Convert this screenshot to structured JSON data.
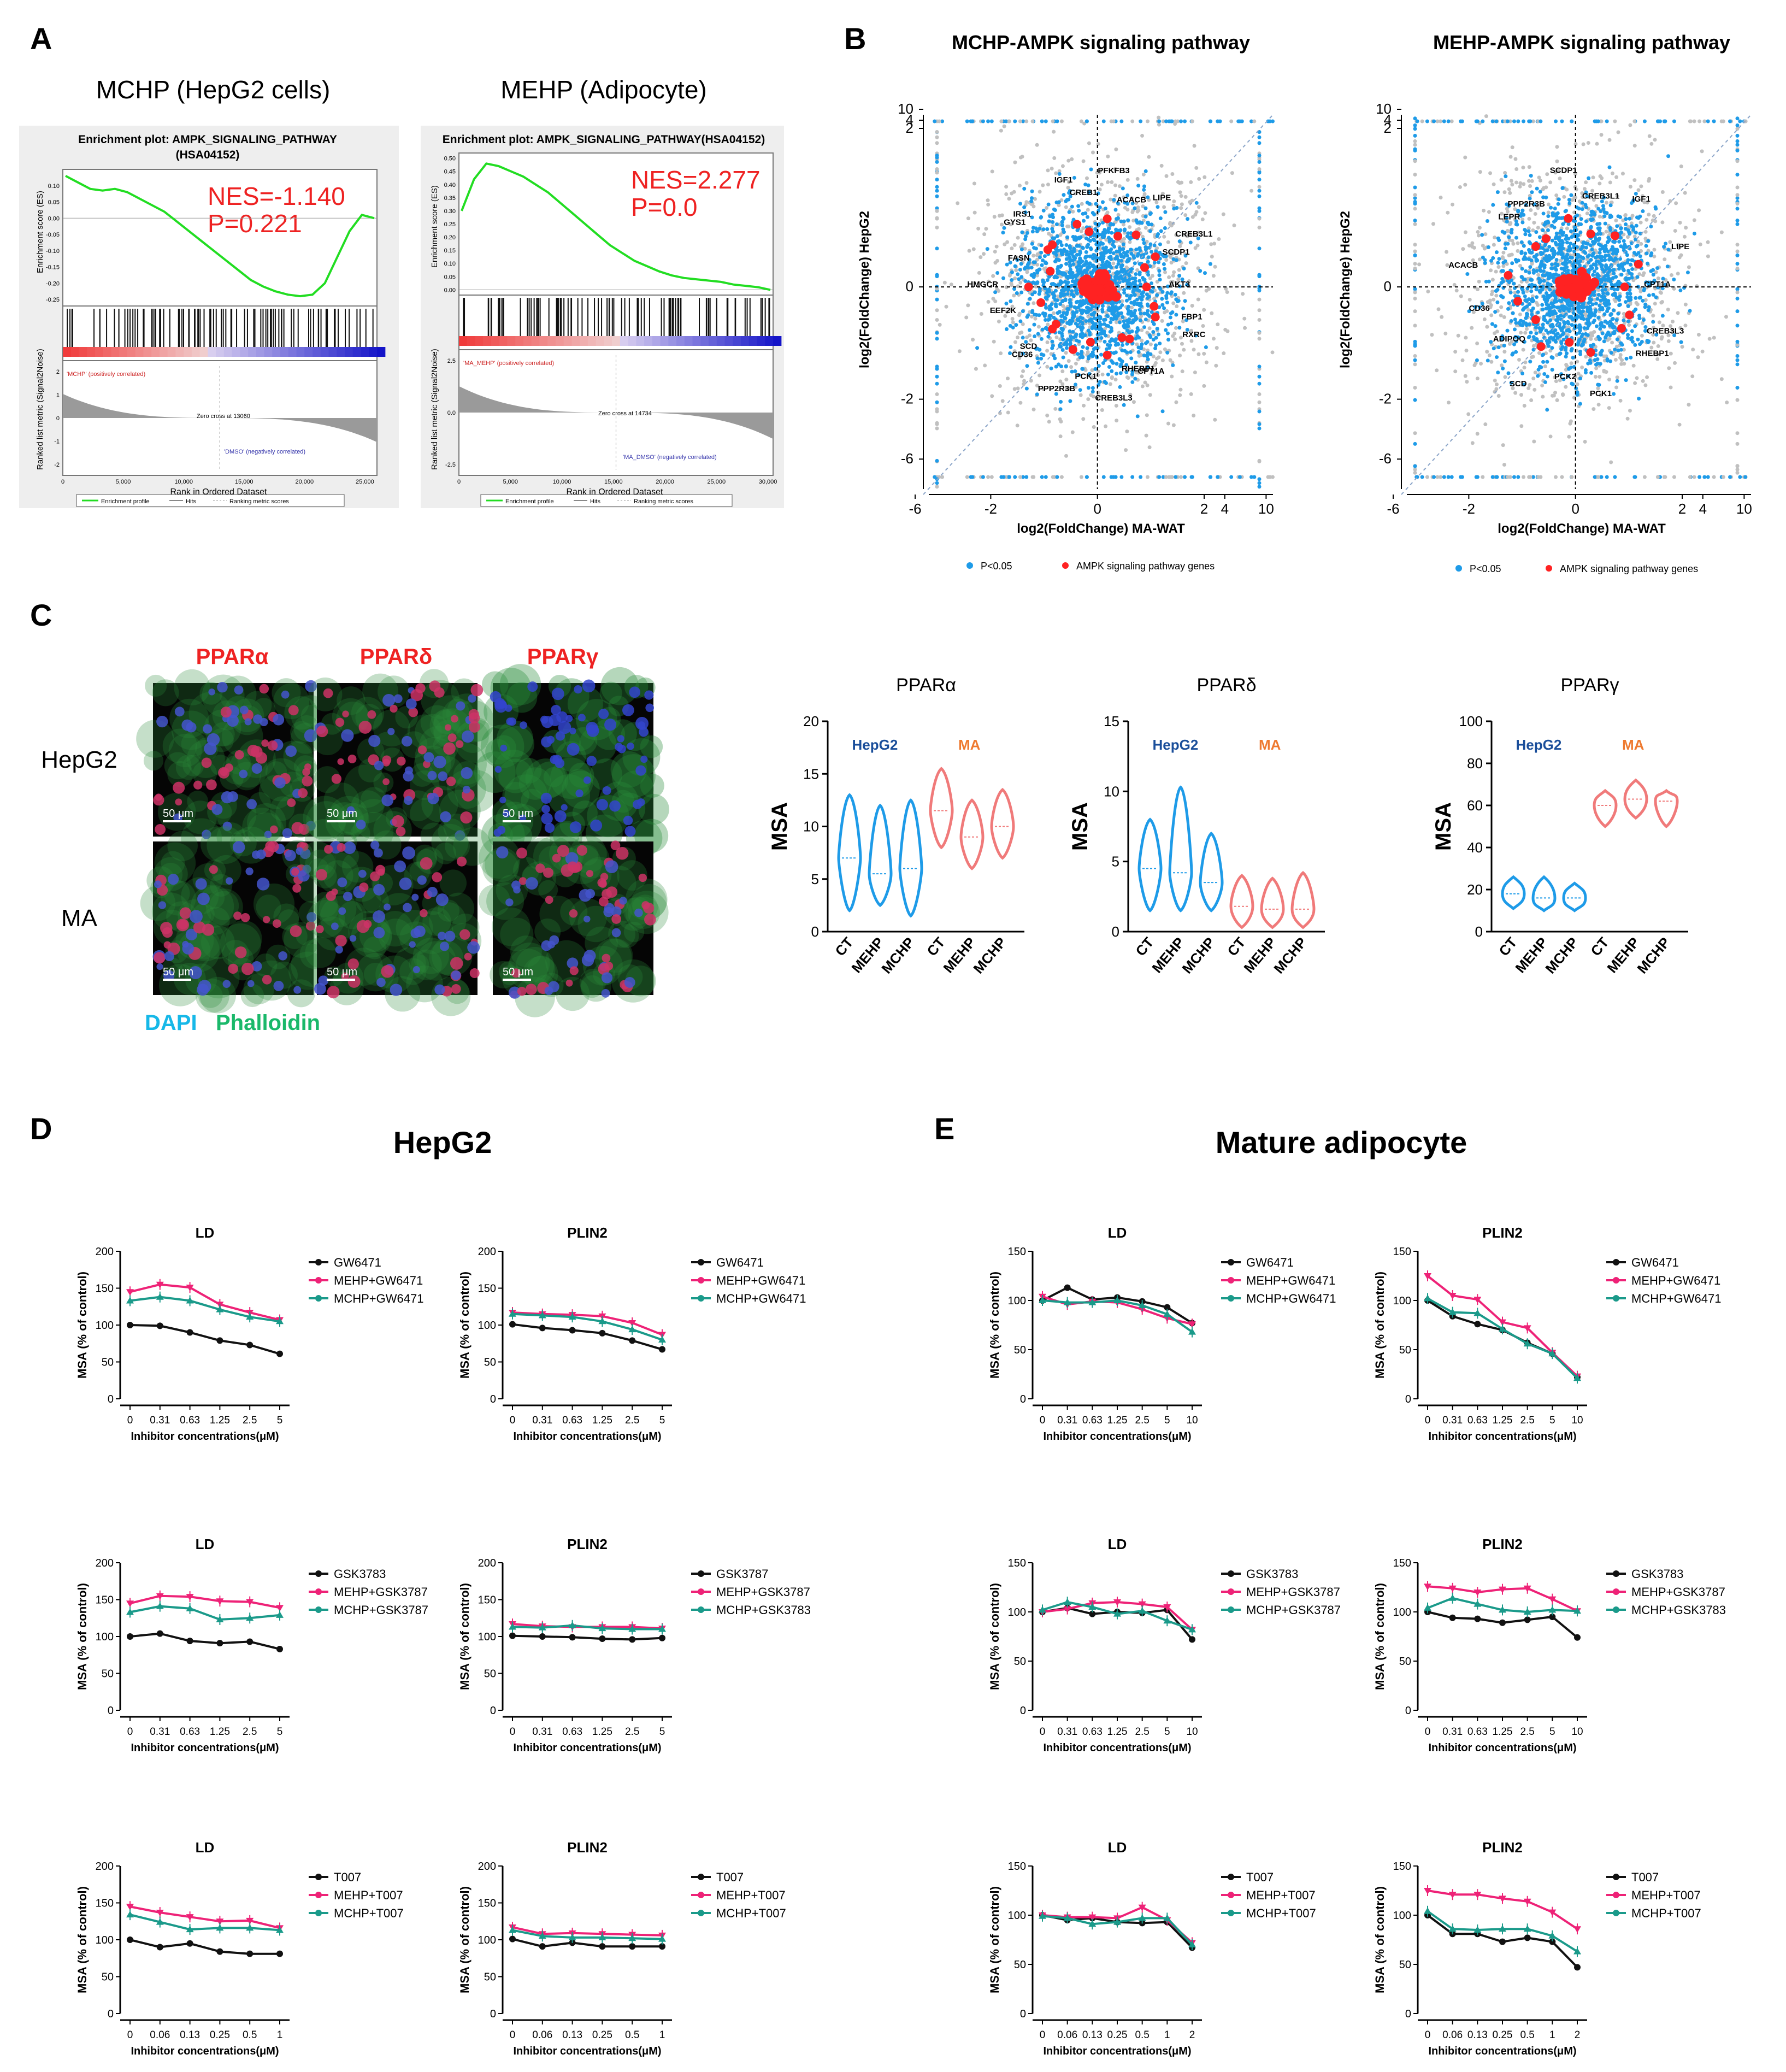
{
  "colors": {
    "green_line": "#22dd22",
    "red": "#ff2222",
    "blue_pts": "#1e9be8",
    "grey_pts": "#c0c0c0",
    "magenta": "#ee2277",
    "teal": "#1a9a8a",
    "black": "#111111",
    "hepg2_blue": "#1a4e9a",
    "ma_orange": "#ee7a30",
    "violin_blue": "#1e9be8",
    "violin_pink": "#f07a7a",
    "dapi": "#16b8e8",
    "phalloidin": "#1ab86a"
  },
  "panelA": {
    "letter": "A",
    "plots": [
      {
        "heading": "MCHP (HepG2 cells)",
        "title1": "Enrichment plot: AMPK_SIGNALING_PATHWAY",
        "title2": "(HSA04152)",
        "nes": "NES=-1.140",
        "p": "P=0.221",
        "es_label": "Enrichment score (ES)",
        "metric_label": "Ranked list metric (Signal2Noise)",
        "xlabel": "Rank in Ordered Dataset",
        "bar_left": "'MCHP' (positively correlated)",
        "bar_right": "'DMSO' (negatively correlated)",
        "zero_cross": "Zero cross at 13060",
        "xticks": [
          "0",
          "5,000",
          "10,000",
          "15,000",
          "20,000",
          "25,000"
        ],
        "esticks": [
          "0.10",
          "0.05",
          "0.00",
          "-0.05",
          "-0.10",
          "-0.15",
          "-0.20",
          "-0.25"
        ],
        "mticks": [
          "2",
          "1",
          "0",
          "-1",
          "-2"
        ],
        "legend": [
          "Enrichment profile",
          "Hits",
          "Ranking metric scores"
        ],
        "es_curve": [
          0.13,
          0.11,
          0.09,
          0.085,
          0.09,
          0.08,
          0.06,
          0.04,
          0.02,
          -0.01,
          -0.04,
          -0.07,
          -0.1,
          -0.13,
          -0.16,
          -0.19,
          -0.21,
          -0.225,
          -0.235,
          -0.24,
          -0.235,
          -0.2,
          -0.12,
          -0.04,
          0.01,
          0.0
        ]
      },
      {
        "heading": "MEHP (Adipocyte)",
        "title1": "Enrichment plot: AMPK_SIGNALING_PATHWAY(HSA04152)",
        "title2": "",
        "nes": "NES=2.277",
        "p": "P=0.0",
        "es_label": "Enrichment score (ES)",
        "metric_label": "Ranked list metric (Signal2Noise)",
        "xlabel": "Rank in Ordered Dataset",
        "bar_left": "'MA_MEHP' (positively correlated)",
        "bar_right": "'MA_DMSO' (negatively correlated)",
        "zero_cross": "Zero cross at 14734",
        "xticks": [
          "0",
          "5,000",
          "10,000",
          "15,000",
          "20,000",
          "25,000",
          "30,000"
        ],
        "esticks": [
          "0.50",
          "0.45",
          "0.40",
          "0.35",
          "0.30",
          "0.25",
          "0.20",
          "0.15",
          "0.10",
          "0.05",
          "0.00"
        ],
        "mticks": [
          "2.5",
          "0.0",
          "-2.5"
        ],
        "legend": [
          "Enrichment profile",
          "Hits",
          "Ranking metric scores"
        ],
        "es_curve": [
          0.3,
          0.42,
          0.48,
          0.47,
          0.45,
          0.43,
          0.4,
          0.37,
          0.33,
          0.29,
          0.25,
          0.21,
          0.17,
          0.14,
          0.11,
          0.09,
          0.07,
          0.055,
          0.045,
          0.04,
          0.035,
          0.03,
          0.02,
          0.015,
          0.01,
          0.0
        ]
      }
    ]
  },
  "panelB": {
    "letter": "B",
    "plots": [
      {
        "title": "MCHP-AMPK signaling pathway",
        "xlabel": "log2(FoldChange) MA-WAT",
        "ylabel": "log2(FoldChange) HepG2",
        "yticks": [
          "10",
          "4",
          "2",
          "0",
          "-2",
          "-6"
        ],
        "xticks": [
          "-6",
          "-2",
          "0",
          "2",
          "4",
          "10"
        ],
        "genes": [
          "AKT3",
          "FBP1",
          "RXRC",
          "CPT1A",
          "RHEBP1",
          "CREB3L3",
          "PCK1",
          "PPP2R3B",
          "CD36",
          "SCD",
          "EEF2K",
          "HMGCR",
          "FASN",
          "GYS1",
          "IRS1",
          "IGF1",
          "CREB1",
          "PFKFB3",
          "ACACB",
          "LIPE",
          "CREB3L1",
          "SCDP1"
        ]
      },
      {
        "title": "MEHP-AMPK signaling pathway",
        "xlabel": "log2(FoldChange) MA-WAT",
        "ylabel": "log2(FoldChange) HepG2",
        "yticks": [
          "10",
          "4",
          "2",
          "0",
          "-2",
          "-6"
        ],
        "xticks": [
          "-6",
          "-2",
          "0",
          "2",
          "4",
          "10"
        ],
        "genes": [
          "CPT1A",
          "CREB3L3",
          "RHEBP1",
          "PCK1",
          "PCK2",
          "SCD",
          "ADIPOQ",
          "CD36",
          "ACACB",
          "LEPR",
          "PPP2R3B",
          "SCDP1",
          "CREB3L1",
          "IGF1",
          "LIPE"
        ]
      }
    ],
    "legend": {
      "blue": "P<0.05",
      "red": "AMPK signaling pathway genes"
    }
  },
  "panelC": {
    "letter": "C",
    "columns": [
      "PPARα",
      "PPARδ",
      "PPARγ"
    ],
    "rows": [
      "HepG2",
      "MA"
    ],
    "scalebar": "50 μm",
    "stain_dapi": "DAPI",
    "stain_phalloidin": "Phalloidin",
    "violins": [
      {
        "title": "PPARα",
        "ylabel": "MSA",
        "yticks": [
          "0",
          "5",
          "10",
          "15",
          "20"
        ],
        "ymax": 20,
        "groups": [
          "CT",
          "MEHP",
          "MCHP",
          "CT",
          "MEHP",
          "MCHP"
        ],
        "hepg2": "HepG2",
        "ma": "MA",
        "centers": [
          7,
          5.5,
          6,
          11.5,
          9,
          10
        ],
        "ranges": [
          [
            2,
            13
          ],
          [
            2.5,
            12
          ],
          [
            1.5,
            12.5
          ],
          [
            8,
            15.5
          ],
          [
            6,
            12.5
          ],
          [
            7,
            13.5
          ]
        ]
      },
      {
        "title": "PPARδ",
        "ylabel": "MSA",
        "yticks": [
          "0",
          "5",
          "10",
          "15"
        ],
        "ymax": 15,
        "groups": [
          "CT",
          "MEHP",
          "MCHP",
          "CT",
          "MEHP",
          "MCHP"
        ],
        "hepg2": "HepG2",
        "ma": "MA",
        "centers": [
          4.5,
          4.2,
          3.5,
          1.8,
          1.6,
          1.6
        ],
        "ranges": [
          [
            1.5,
            8
          ],
          [
            1.5,
            10.3
          ],
          [
            1.5,
            7
          ],
          [
            0.3,
            4
          ],
          [
            0.3,
            3.8
          ],
          [
            0.3,
            4.2
          ]
        ]
      },
      {
        "title": "PPARγ",
        "ylabel": "MSA",
        "yticks": [
          "0",
          "20",
          "40",
          "60",
          "80",
          "100"
        ],
        "ymax": 100,
        "groups": [
          "CT",
          "MEHP",
          "MCHP",
          "CT",
          "MEHP",
          "MCHP"
        ],
        "hepg2": "HepG2",
        "ma": "MA",
        "centers": [
          18,
          16,
          16,
          60,
          63,
          62
        ],
        "ranges": [
          [
            11,
            26
          ],
          [
            10,
            26
          ],
          [
            10,
            23
          ],
          [
            50,
            67
          ],
          [
            54,
            72
          ],
          [
            50,
            67
          ]
        ]
      }
    ]
  },
  "panelD": {
    "letter": "D",
    "heading": "HepG2"
  },
  "panelE": {
    "letter": "E",
    "heading": "Mature adipocyte"
  },
  "dose_charts": [
    {
      "panel": "D",
      "title": "LD",
      "ymax": 200,
      "yticks": [
        "0",
        "50",
        "100",
        "150",
        "200"
      ],
      "xticks": [
        "0",
        "0.31",
        "0.63",
        "1.25",
        "2.5",
        "5"
      ],
      "legend": [
        "GW6471",
        "MEHP+GW6471",
        "MCHP+GW6471"
      ],
      "series": [
        [
          100,
          99,
          90,
          79,
          73,
          61
        ],
        [
          145,
          155,
          151,
          128,
          117,
          107
        ],
        [
          133,
          138,
          133,
          121,
          111,
          105
        ]
      ]
    },
    {
      "panel": "D",
      "title": "PLIN2",
      "ymax": 200,
      "yticks": [
        "0",
        "50",
        "100",
        "150",
        "200"
      ],
      "xticks": [
        "0",
        "0.31",
        "0.63",
        "1.25",
        "2.5",
        "5"
      ],
      "legend": [
        "GW6471",
        "MEHP+GW6471",
        "MCHP+GW6471"
      ],
      "series": [
        [
          101,
          96,
          93,
          89,
          79,
          67
        ],
        [
          117,
          115,
          114,
          112,
          103,
          87
        ],
        [
          115,
          113,
          111,
          105,
          94,
          80
        ]
      ]
    },
    {
      "panel": "E",
      "title": "LD",
      "ymax": 150,
      "yticks": [
        "0",
        "50",
        "100",
        "150"
      ],
      "xticks": [
        "0",
        "0.31",
        "0.63",
        "1.25",
        "2.5",
        "5",
        "10"
      ],
      "legend": [
        "GW6471",
        "MEHP+GW6471",
        "MCHP+GW6471"
      ],
      "series": [
        [
          100,
          113,
          101,
          103,
          99,
          93,
          77
        ],
        [
          104,
          96,
          99,
          98,
          91,
          82,
          76
        ],
        [
          100,
          98,
          98,
          100,
          95,
          86,
          68
        ]
      ]
    },
    {
      "panel": "E",
      "title": "PLIN2",
      "ymax": 150,
      "yticks": [
        "0",
        "50",
        "100",
        "150"
      ],
      "xticks": [
        "0",
        "0.31",
        "0.63",
        "1.25",
        "2.5",
        "5",
        "10"
      ],
      "legend": [
        "GW6471",
        "MEHP+GW6471",
        "MCHP+GW6471"
      ],
      "series": [
        [
          100,
          84,
          76,
          70,
          57,
          46,
          22
        ],
        [
          125,
          105,
          101,
          78,
          72,
          47,
          23
        ],
        [
          102,
          88,
          87,
          71,
          56,
          46,
          21
        ]
      ]
    },
    {
      "panel": "D",
      "title": "LD",
      "ymax": 200,
      "yticks": [
        "0",
        "50",
        "100",
        "150",
        "200"
      ],
      "xticks": [
        "0",
        "0.31",
        "0.63",
        "1.25",
        "2.5",
        "5"
      ],
      "legend": [
        "GSK3783",
        "MEHP+GSK3787",
        "MCHP+GSK3787"
      ],
      "series": [
        [
          100,
          104,
          94,
          91,
          93,
          83
        ],
        [
          145,
          155,
          154,
          148,
          147,
          139
        ],
        [
          133,
          141,
          138,
          123,
          125,
          129
        ]
      ]
    },
    {
      "panel": "D",
      "title": "PLIN2",
      "ymax": 200,
      "yticks": [
        "0",
        "50",
        "100",
        "150",
        "200"
      ],
      "xticks": [
        "0",
        "0.31",
        "0.63",
        "1.25",
        "2.5",
        "5"
      ],
      "legend": [
        "GSK3787",
        "MEHP+GSK3787",
        "MCHP+GSK3783"
      ],
      "series": [
        [
          101,
          100,
          99,
          97,
          96,
          98
        ],
        [
          117,
          114,
          113,
          113,
          113,
          111
        ],
        [
          113,
          112,
          115,
          111,
          110,
          110
        ]
      ]
    },
    {
      "panel": "E",
      "title": "LD",
      "ymax": 150,
      "yticks": [
        "0",
        "50",
        "100",
        "150"
      ],
      "xticks": [
        "0",
        "0.31",
        "0.63",
        "1.25",
        "2.5",
        "5",
        "10"
      ],
      "legend": [
        "GSK3783",
        "MEHP+GSK3787",
        "MCHP+GSK3787"
      ],
      "series": [
        [
          100,
          104,
          98,
          100,
          99,
          102,
          72
        ],
        [
          100,
          103,
          109,
          110,
          108,
          105,
          82
        ],
        [
          102,
          110,
          105,
          98,
          101,
          91,
          82
        ]
      ]
    },
    {
      "panel": "E",
      "title": "PLIN2",
      "ymax": 150,
      "yticks": [
        "0",
        "50",
        "100",
        "150"
      ],
      "xticks": [
        "0",
        "0.31",
        "0.63",
        "1.25",
        "2.5",
        "5",
        "10"
      ],
      "legend": [
        "GSK3783",
        "MEHP+GSK3787",
        "MCHP+GSK3783"
      ],
      "series": [
        [
          100,
          94,
          93,
          89,
          92,
          95,
          74
        ],
        [
          126,
          124,
          120,
          123,
          124,
          113,
          101
        ],
        [
          104,
          114,
          108,
          102,
          100,
          102,
          101
        ]
      ]
    },
    {
      "panel": "D",
      "title": "LD",
      "ymax": 200,
      "yticks": [
        "0",
        "50",
        "100",
        "150",
        "200"
      ],
      "xticks": [
        "0",
        "0.06",
        "0.13",
        "0.25",
        "0.5",
        "1"
      ],
      "legend": [
        "T007",
        "MEHP+T007",
        "MCHP+T007"
      ],
      "series": [
        [
          100,
          90,
          95,
          84,
          81,
          81
        ],
        [
          145,
          137,
          131,
          125,
          126,
          116
        ],
        [
          134,
          124,
          114,
          116,
          116,
          113
        ]
      ]
    },
    {
      "panel": "D",
      "title": "PLIN2",
      "ymax": 200,
      "yticks": [
        "0",
        "50",
        "100",
        "150",
        "200"
      ],
      "xticks": [
        "0",
        "0.06",
        "0.13",
        "0.25",
        "0.5",
        "1"
      ],
      "legend": [
        "T007",
        "MEHP+T007",
        "MCHP+T007"
      ],
      "series": [
        [
          101,
          91,
          96,
          91,
          91,
          91
        ],
        [
          117,
          108,
          109,
          108,
          107,
          106
        ],
        [
          113,
          105,
          103,
          103,
          102,
          101
        ]
      ]
    },
    {
      "panel": "E",
      "title": "LD",
      "ymax": 150,
      "yticks": [
        "0",
        "50",
        "100",
        "150"
      ],
      "xticks": [
        "0",
        "0.06",
        "0.13",
        "0.25",
        "0.5",
        "1",
        "2"
      ],
      "legend": [
        "T007",
        "MEHP+T007",
        "MCHP+T007"
      ],
      "series": [
        [
          100,
          95,
          97,
          93,
          92,
          93,
          67
        ],
        [
          100,
          98,
          98,
          97,
          108,
          95,
          72
        ],
        [
          99,
          97,
          91,
          93,
          97,
          97,
          70
        ]
      ]
    },
    {
      "panel": "E",
      "title": "PLIN2",
      "ymax": 150,
      "yticks": [
        "0",
        "50",
        "100",
        "150"
      ],
      "xticks": [
        "0",
        "0.06",
        "0.13",
        "0.25",
        "0.5",
        "1",
        "2"
      ],
      "legend": [
        "T007",
        "MEHP+T007",
        "MCHP+T007"
      ],
      "series": [
        [
          100,
          81,
          81,
          73,
          77,
          73,
          47
        ],
        [
          125,
          121,
          121,
          117,
          114,
          103,
          86
        ],
        [
          104,
          86,
          85,
          86,
          86,
          79,
          63
        ]
      ]
    }
  ],
  "dose_common": {
    "ylabel": "MSA (% of control)",
    "xlabel": "Inhibitor concentrations(μM)"
  }
}
